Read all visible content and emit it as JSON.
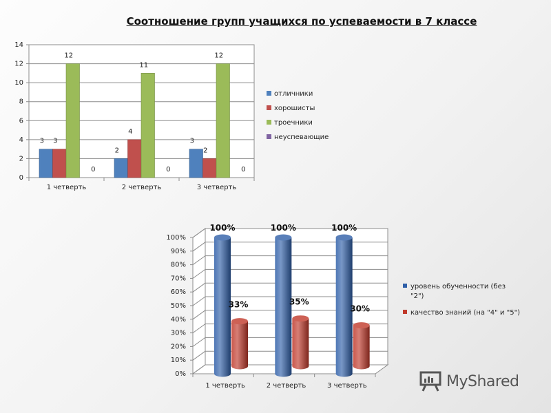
{
  "title": "Соотношение групп учащихся по успеваемости в 7 классе",
  "chart_data": [
    {
      "type": "bar",
      "categories": [
        "1 четверть",
        "2 четверть",
        "3 четверть"
      ],
      "series": [
        {
          "name": "отличники",
          "values": [
            3,
            2,
            3
          ],
          "color": "#4f81bd"
        },
        {
          "name": "хорошисты",
          "values": [
            3,
            4,
            2
          ],
          "color": "#c0504d"
        },
        {
          "name": "троечники",
          "values": [
            12,
            11,
            12
          ],
          "color": "#9bbb59"
        },
        {
          "name": "неуспевающие",
          "values": [
            0,
            0,
            0
          ],
          "color": "#8064a2"
        }
      ],
      "ylim": [
        0,
        14
      ],
      "yticks": [
        "0",
        "2",
        "4",
        "6",
        "8",
        "10",
        "12",
        "14"
      ],
      "legend": "right",
      "grid": true
    },
    {
      "type": "bar",
      "style": "3d-cylinder",
      "categories": [
        "1 четверть",
        "2 четверть",
        "3 четверть"
      ],
      "series": [
        {
          "name": "уровень обученности (без \"2\")",
          "values": [
            100,
            100,
            100
          ],
          "labels": [
            "100%",
            "100%",
            "100%"
          ],
          "color": "#2f5fa8"
        },
        {
          "name": "качество знаний (на \"4\" и \"5\")",
          "values": [
            33,
            35,
            30
          ],
          "labels": [
            "33%",
            "35%",
            "30%"
          ],
          "color": "#c0392b"
        }
      ],
      "ylim": [
        0,
        100
      ],
      "yticks": [
        "0%",
        "10%",
        "20%",
        "30%",
        "40%",
        "50%",
        "60%",
        "70%",
        "80%",
        "90%",
        "100%"
      ],
      "legend": "right",
      "grid": true
    }
  ],
  "watermark": {
    "text": "MyShared",
    "icon": "presentation-board-icon"
  }
}
